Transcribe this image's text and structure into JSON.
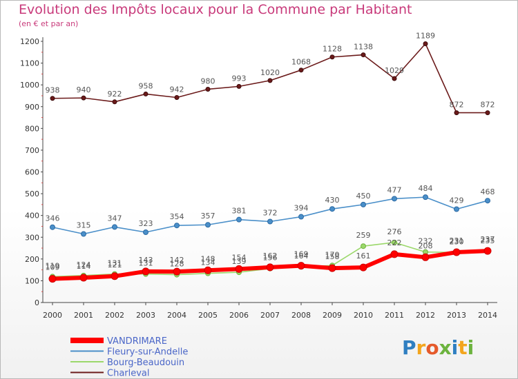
{
  "chart_data": {
    "type": "line",
    "title": "Evolution des Impôts locaux pour la Commune par Habitant",
    "subtitle": "(en € et par an)",
    "x": [
      2000,
      2001,
      2002,
      2003,
      2004,
      2005,
      2006,
      2007,
      2008,
      2009,
      2010,
      2011,
      2012,
      2013,
      2014
    ],
    "ylim": [
      0,
      1200
    ],
    "yticks": [
      0,
      100,
      200,
      300,
      400,
      500,
      600,
      700,
      800,
      900,
      1000,
      1100,
      1200
    ],
    "grid": false,
    "legend_position": "bottom-left",
    "series": [
      {
        "name": "Charleval",
        "color": "#6b1a1a",
        "values": [
          938,
          940,
          922,
          958,
          942,
          980,
          993,
          1020,
          1068,
          1128,
          1138,
          1029,
          1189,
          872,
          872
        ],
        "labels": [
          "938",
          "940",
          "922",
          "958",
          "942",
          "980",
          "993",
          "1020",
          "1068",
          "1128",
          "1138",
          "1029",
          "1189",
          "872",
          "872"
        ]
      },
      {
        "name": "Fleury-sur-Andelle",
        "color": "#4a8fc9",
        "values": [
          346,
          315,
          347,
          323,
          354,
          357,
          381,
          372,
          394,
          430,
          450,
          477,
          484,
          429,
          468
        ],
        "labels": [
          "346",
          "315",
          "347",
          "323",
          "354",
          "357",
          "381",
          "372",
          "394",
          "430",
          "450",
          "477",
          "484",
          "429",
          "468"
        ]
      },
      {
        "name": "Bourg-Beaudouin",
        "color": "#9bd86a",
        "values": [
          119,
          124,
          131,
          131,
          128,
          134,
          139,
          156,
          164,
          170,
          259,
          276,
          232,
          230,
          235
        ],
        "labels": [
          "119",
          "124",
          "131",
          "131",
          "128",
          "134",
          "139",
          "156",
          "164",
          "170",
          "259",
          "276",
          "232",
          "230",
          "235"
        ]
      },
      {
        "name": "VANDRIMARE",
        "color": "#ff0000",
        "values": [
          109,
          114,
          121,
          143,
          142,
          148,
          154,
          162,
          169,
          158,
          161,
          222,
          208,
          231,
          237
        ],
        "labels": [
          "109",
          "114",
          "121",
          "143",
          "142",
          "148",
          "154",
          "162",
          "169",
          "158",
          "161",
          "222",
          "208",
          "231",
          "237"
        ]
      }
    ],
    "legend": [
      "VANDRIMARE",
      "Fleury-sur-Andelle",
      "Bourg-Beaudouin",
      "Charleval"
    ]
  },
  "logo": {
    "letters": [
      "P",
      "r",
      "o",
      "x",
      "i",
      "t",
      "i"
    ]
  }
}
